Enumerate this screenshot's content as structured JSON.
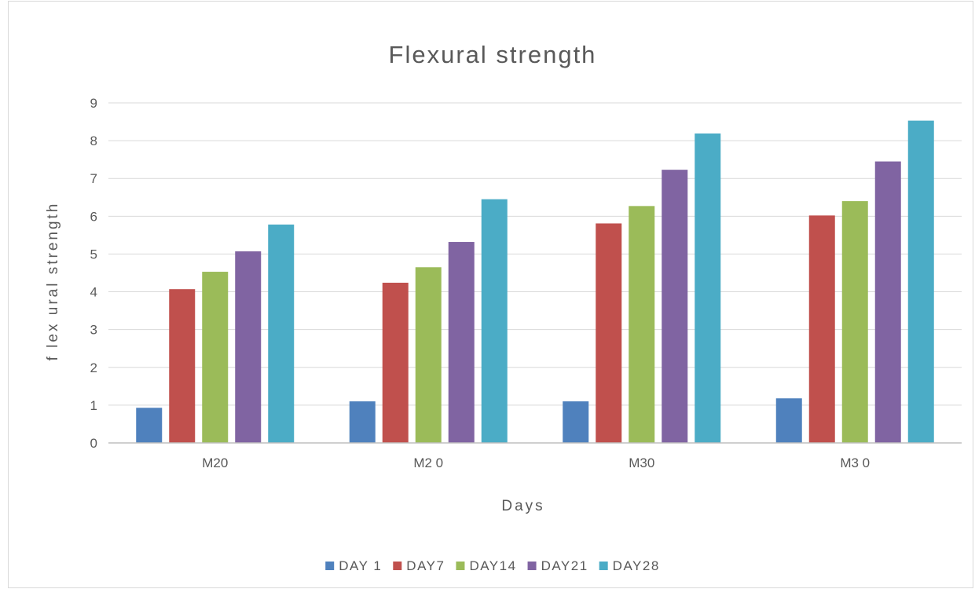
{
  "chart_data": {
    "type": "bar",
    "title": "Flexural strength",
    "xlabel": "Days",
    "ylabel": "f lex ural  strength",
    "categories": [
      "M20",
      "M2 0",
      "M30",
      "M3 0"
    ],
    "series": [
      {
        "name": "DAY 1",
        "color": "#4f81bd",
        "values": [
          0.93,
          1.1,
          1.1,
          1.18
        ]
      },
      {
        "name": "DAY7",
        "color": "#c0504d",
        "values": [
          4.07,
          4.24,
          5.81,
          6.02
        ]
      },
      {
        "name": "DAY14",
        "color": "#9bbb59",
        "values": [
          4.53,
          4.65,
          6.27,
          6.4
        ]
      },
      {
        "name": "DAY21",
        "color": "#8064a2",
        "values": [
          5.07,
          5.32,
          7.23,
          7.45
        ]
      },
      {
        "name": "DAY28",
        "color": "#4bacc6",
        "values": [
          5.78,
          6.45,
          8.19,
          8.53
        ]
      }
    ],
    "yticks": [
      "0",
      "1",
      "2",
      "3",
      "4",
      "5",
      "6",
      "7",
      "8",
      "9"
    ],
    "ylim": [
      0,
      9
    ],
    "grid": true,
    "legend_position": "bottom"
  }
}
